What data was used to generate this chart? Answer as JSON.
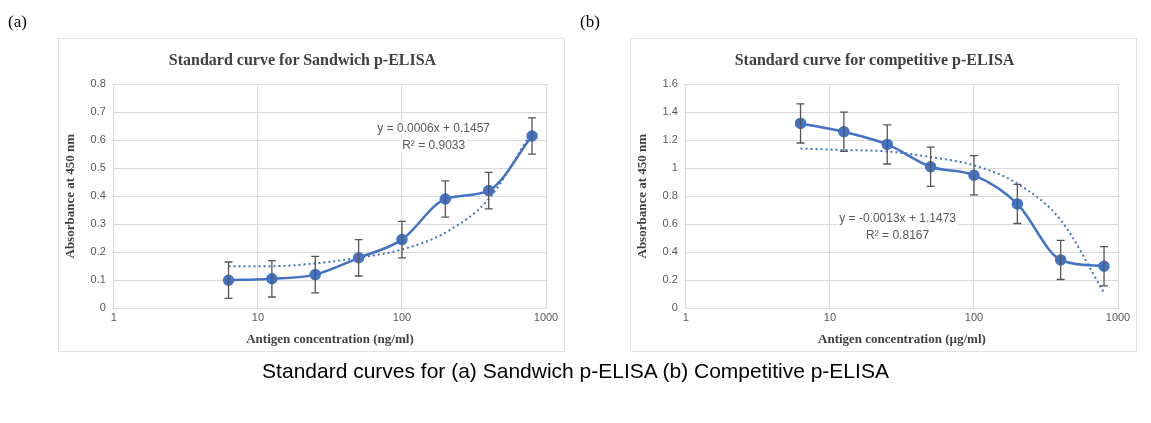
{
  "chart_data": [
    {
      "type": "line",
      "title": "Standard curve for Sandwich p-ELISA",
      "xlabel": "Antigen concentration (ng/ml)",
      "ylabel": "Absorbance at 450 nm",
      "log": "x",
      "xlim": [
        1,
        1000
      ],
      "xticks": [
        1,
        10,
        100,
        1000
      ],
      "ylim": [
        0,
        0.8
      ],
      "yticks": [
        0,
        0.1,
        0.2,
        0.3,
        0.4,
        0.5,
        0.6,
        0.7,
        0.8
      ],
      "grid": true,
      "legend": false,
      "x": [
        6.25,
        12.5,
        25,
        50,
        100,
        200,
        400,
        800
      ],
      "series": [
        {
          "color": "#4472c4",
          "marker": "circle",
          "line_style": "solid",
          "values": [
            0.1,
            0.105,
            0.12,
            0.18,
            0.245,
            0.39,
            0.42,
            0.615
          ],
          "errors": [
            0.065,
            0.065,
            0.065,
            0.065,
            0.065,
            0.065,
            0.065,
            0.065
          ]
        },
        {
          "color": "#4472c4",
          "marker": "none",
          "line_style": "dotted",
          "x": [
            6.25,
            12.5,
            25,
            50,
            100,
            200,
            400,
            800
          ],
          "values": [
            0.15,
            0.15,
            0.16,
            0.18,
            0.21,
            0.27,
            0.39,
            0.63
          ]
        }
      ],
      "annotations": [
        "(a)",
        "y = 0.0006x + 0.1457",
        "R² = 0.9033"
      ]
    },
    {
      "type": "line",
      "title": "Standard curve for competitive p-ELISA",
      "xlabel": "Antigen concentration (µg/ml)",
      "ylabel": "Absorbance at 450 nm",
      "log": "x",
      "xlim": [
        1,
        1000
      ],
      "xticks": [
        1,
        10,
        100,
        1000
      ],
      "ylim": [
        0,
        1.6
      ],
      "yticks": [
        0,
        0.2,
        0.4,
        0.6,
        0.8,
        1,
        1.2,
        1.4,
        1.6
      ],
      "grid": true,
      "legend": false,
      "x": [
        6.25,
        12.5,
        25,
        50,
        100,
        200,
        400,
        800
      ],
      "series": [
        {
          "color": "#4472c4",
          "marker": "circle",
          "line_style": "solid",
          "values": [
            1.32,
            1.26,
            1.17,
            1.01,
            0.95,
            0.745,
            0.345,
            0.3
          ],
          "errors": [
            0.14,
            0.14,
            0.14,
            0.14,
            0.14,
            0.14,
            0.14,
            0.14
          ]
        },
        {
          "color": "#4472c4",
          "marker": "none",
          "line_style": "dotted",
          "x": [
            6.25,
            12.5,
            25,
            50,
            100,
            200,
            400,
            800
          ],
          "values": [
            1.14,
            1.13,
            1.12,
            1.08,
            1.02,
            0.89,
            0.63,
            0.11
          ]
        }
      ],
      "annotations": [
        "(b)",
        "y = -0.0013x + 1.1473",
        "R² = 0.8167",
        "Standard curves for (a) Sandwich p-ELISA (b) Competitive p-ELISA"
      ]
    }
  ]
}
